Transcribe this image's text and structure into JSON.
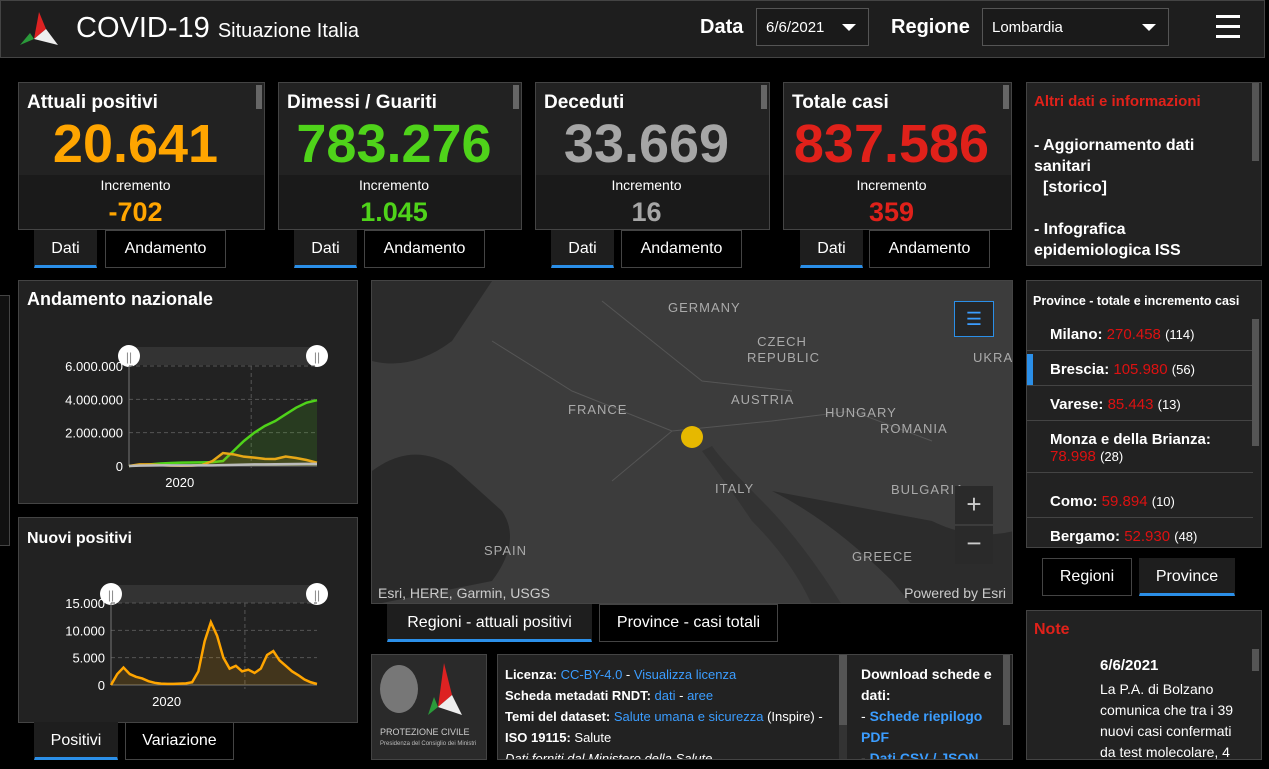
{
  "header": {
    "title": "COVID-19",
    "subtitle": "Situazione Italia",
    "date_label": "Data",
    "date_value": "6/6/2021",
    "region_label": "Regione",
    "region_value": "Lombardia"
  },
  "cards": [
    {
      "title": "Attuali positivi",
      "value": "20.641",
      "inc_label": "Incremento",
      "inc": "-702",
      "color": "#ffa500",
      "tabs": [
        "Dati",
        "Andamento"
      ]
    },
    {
      "title": "Dimessi / Guariti",
      "value": "783.276",
      "inc_label": "Incremento",
      "inc": "1.045",
      "color": "#4fd31a",
      "tabs": [
        "Dati",
        "Andamento"
      ]
    },
    {
      "title": "Deceduti",
      "value": "33.669",
      "inc_label": "Incremento",
      "inc": "16",
      "color": "#a6a6a6",
      "tabs": [
        "Dati",
        "Andamento"
      ]
    },
    {
      "title": "Totale casi",
      "value": "837.586",
      "inc_label": "Incremento",
      "inc": "359",
      "color": "#e0211a",
      "tabs": [
        "Dati",
        "Andamento"
      ]
    }
  ],
  "info": {
    "title": "Altri dati e informazioni",
    "item1": "- Aggiornamento dati sanitari",
    "item1b": "[storico]",
    "item2": "- Infografica epidemiologica ISS"
  },
  "province": {
    "title": "Province - totale e incremento casi",
    "items": [
      {
        "name": "Milano:",
        "value": "270.458",
        "inc": "(114)"
      },
      {
        "name": "Brescia:",
        "value": "105.980",
        "inc": "(56)"
      },
      {
        "name": "Varese:",
        "value": "85.443",
        "inc": "(13)"
      },
      {
        "name": "Monza e della Brianza:",
        "value": "78.998",
        "inc": "(28)"
      },
      {
        "name": "Como:",
        "value": "59.894",
        "inc": "(10)"
      },
      {
        "name": "Bergamo:",
        "value": "52.930",
        "inc": "(48)"
      }
    ],
    "tabs": [
      "Regioni",
      "Province"
    ]
  },
  "note": {
    "title": "Note",
    "date": "6/6/2021",
    "text": "La P.A. di Bolzano comunica che tra i 39 nuovi casi confermati da test molecolare, 4"
  },
  "map": {
    "labels": [
      "GERMANY",
      "CZECH REPUBLIC",
      "UKRA",
      "FRANCE",
      "AUSTRIA",
      "HUNGARY",
      "ROMANIA",
      "ITALY",
      "BULGARIA",
      "SPAIN",
      "GREECE"
    ],
    "attribution": "Esri, HERE, Garmin, USGS",
    "powered": "Powered by Esri",
    "tabs": [
      "Regioni - attuali positivi",
      "Province - casi totali"
    ],
    "marker_color": "#e6b800"
  },
  "license": {
    "l1k": "Licenza:",
    "l1a": "CC-BY-4.0",
    "l1s": " - ",
    "l1b": "Visualizza licenza",
    "l2k": "Scheda metadati RNDT:",
    "l2a": "dati",
    "l2s": " - ",
    "l2b": "aree",
    "l3k": "Temi del dataset:",
    "l3a": "Salute umana e sicurezza",
    "l3b": " (Inspire) -",
    "l4k": "ISO 19115:",
    "l4v": " Salute",
    "l5": "Dati forniti dal Ministero della Salute",
    "dl_title": "Download schede e dati:",
    "dl1": "Schede riepilogo PDF",
    "dl2": "Dati CSV / JSON",
    "logo_text": "PROTEZIONE CIVILE",
    "logo_sub": "Presidenza del Consiglio dei Ministri"
  },
  "chart_tabs": [
    "Positivi",
    "Variazione"
  ],
  "chart_data": [
    {
      "type": "area",
      "title": "Andamento nazionale",
      "yticks": [
        "6.000.000",
        "4.000.000",
        "2.000.000",
        "0"
      ],
      "ylim": [
        0,
        6000000
      ],
      "xtick": "2020",
      "series": [
        {
          "name": "guariti",
          "color": "#4fd31a",
          "values": [
            0,
            50000,
            100000,
            150000,
            180000,
            200000,
            210000,
            220000,
            230000,
            300000,
            900000,
            1500000,
            2000000,
            2400000,
            2700000,
            3100000,
            3500000,
            3800000,
            3950000
          ]
        },
        {
          "name": "positivi",
          "color": "#e6a817",
          "values": [
            0,
            100000,
            100000,
            50000,
            20000,
            15000,
            20000,
            60000,
            300000,
            780000,
            700000,
            560000,
            500000,
            430000,
            420000,
            570000,
            480000,
            360000,
            200000
          ]
        },
        {
          "name": "deceduti",
          "color": "#bbb",
          "values": [
            0,
            20000,
            30000,
            35000,
            35000,
            36000,
            36000,
            37000,
            40000,
            50000,
            70000,
            85000,
            95000,
            100000,
            105000,
            110000,
            120000,
            125000,
            127000
          ]
        }
      ]
    },
    {
      "type": "area",
      "title": "Nuovi positivi",
      "yticks": [
        "15.000",
        "10.000",
        "5.000",
        "0"
      ],
      "ylim": [
        0,
        15000
      ],
      "xtick": "2020",
      "series": [
        {
          "name": "nuovi positivi",
          "color": "#ffa500",
          "values": [
            0,
            2000,
            3200,
            2000,
            1500,
            1200,
            700,
            400,
            250,
            200,
            200,
            250,
            300,
            500,
            2500,
            8000,
            11500,
            9000,
            5000,
            3000,
            3500,
            2500,
            2800,
            2200,
            3000,
            5500,
            6200,
            4500,
            3500,
            2500,
            1800,
            1000,
            500,
            200
          ]
        }
      ]
    }
  ]
}
